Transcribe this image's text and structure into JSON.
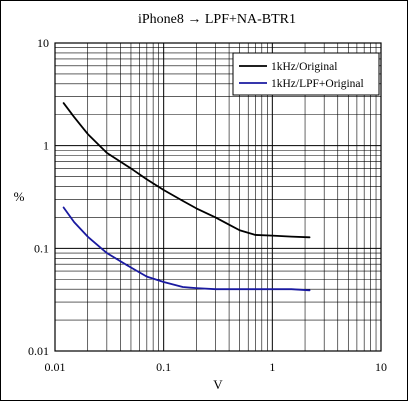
{
  "chart_data": {
    "type": "line",
    "title": "iPhone8 → LPF+NA-BTR1",
    "xlabel": "V",
    "ylabel": "%",
    "x_scale": "log",
    "y_scale": "log",
    "xlim": [
      0.01,
      10
    ],
    "ylim": [
      0.01,
      10
    ],
    "x_ticks": [
      "0.01",
      "0.1",
      "1",
      "10"
    ],
    "y_ticks": [
      "0.01",
      "0.1",
      "1",
      "10"
    ],
    "grid": true,
    "legend_position": "top-right",
    "series": [
      {
        "name": "1kHz/Original",
        "color": "#000000",
        "points": [
          [
            0.012,
            2.6
          ],
          [
            0.015,
            1.9
          ],
          [
            0.02,
            1.3
          ],
          [
            0.03,
            0.85
          ],
          [
            0.05,
            0.6
          ],
          [
            0.07,
            0.47
          ],
          [
            0.1,
            0.37
          ],
          [
            0.15,
            0.29
          ],
          [
            0.2,
            0.245
          ],
          [
            0.3,
            0.2
          ],
          [
            0.4,
            0.17
          ],
          [
            0.5,
            0.15
          ],
          [
            0.7,
            0.135
          ],
          [
            1.0,
            0.133
          ],
          [
            1.5,
            0.13
          ],
          [
            2.2,
            0.128
          ]
        ]
      },
      {
        "name": "1kHz/LPF+Original",
        "color": "#1a1aa0",
        "points": [
          [
            0.012,
            0.25
          ],
          [
            0.015,
            0.18
          ],
          [
            0.02,
            0.13
          ],
          [
            0.03,
            0.09
          ],
          [
            0.05,
            0.065
          ],
          [
            0.07,
            0.053
          ],
          [
            0.1,
            0.047
          ],
          [
            0.15,
            0.042
          ],
          [
            0.2,
            0.041
          ],
          [
            0.3,
            0.04
          ],
          [
            0.5,
            0.04
          ],
          [
            1.0,
            0.04
          ],
          [
            1.5,
            0.04
          ],
          [
            2.2,
            0.039
          ]
        ]
      }
    ]
  }
}
